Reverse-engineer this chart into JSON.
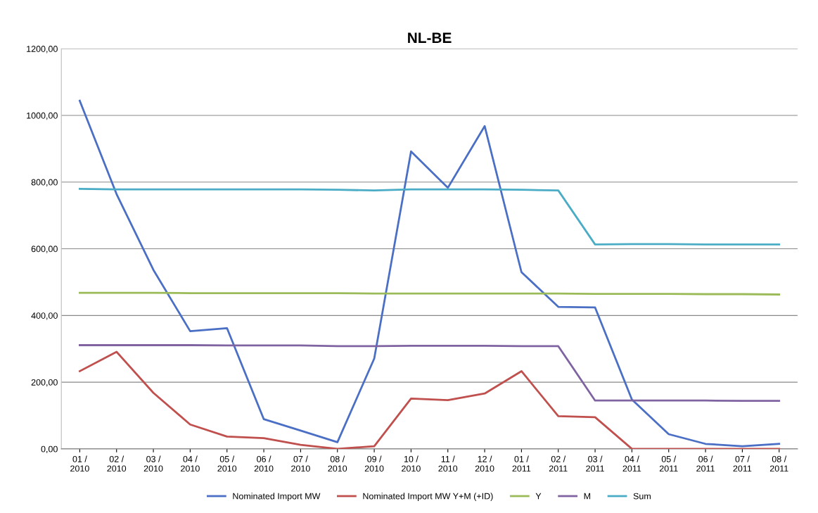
{
  "chart_data": {
    "type": "line",
    "title": "NL-BE",
    "categories": [
      "01 /\n2010",
      "02 /\n2010",
      "03 /\n2010",
      "04 /\n2010",
      "05 /\n2010",
      "06 /\n2010",
      "07 /\n2010",
      "08 /\n2010",
      "09 /\n2010",
      "10 /\n2010",
      "11 /\n2010",
      "12 /\n2010",
      "01 /\n2011",
      "02 /\n2011",
      "03 /\n2011",
      "04 /\n2011",
      "05 /\n2011",
      "06 /\n2011",
      "07 /\n2011",
      "08 /\n2011"
    ],
    "series": [
      {
        "name": "Nominated Import MW",
        "color": "#4a6fc4",
        "values": [
          1044,
          764,
          537,
          353,
          362,
          89,
          55,
          20,
          271,
          892,
          783,
          968,
          530,
          426,
          424,
          148,
          44,
          15,
          8,
          15
        ]
      },
      {
        "name": "Nominated Import MW Y+M (+ID)",
        "color": "#c0504d",
        "values": [
          233,
          291,
          168,
          73,
          37,
          32,
          12,
          0,
          8,
          151,
          146,
          166,
          233,
          98,
          95,
          0,
          0,
          0,
          0,
          0
        ]
      },
      {
        "name": "Y",
        "color": "#9bbb59",
        "values": [
          468,
          468,
          468,
          467,
          467,
          467,
          467,
          467,
          466,
          466,
          466,
          466,
          466,
          466,
          465,
          465,
          465,
          464,
          464,
          463
        ]
      },
      {
        "name": "M",
        "color": "#8064a2",
        "values": [
          311,
          311,
          311,
          311,
          310,
          310,
          310,
          308,
          308,
          309,
          309,
          309,
          308,
          308,
          145,
          145,
          145,
          145,
          144,
          144
        ]
      },
      {
        "name": "Sum",
        "color": "#4bacc6",
        "values": [
          780,
          778,
          778,
          778,
          778,
          778,
          778,
          777,
          775,
          778,
          778,
          778,
          777,
          775,
          613,
          614,
          614,
          613,
          613,
          613
        ]
      }
    ],
    "ylim": [
      0,
      1200
    ],
    "yticks": [
      {
        "value": 0,
        "label": "0,00"
      },
      {
        "value": 200,
        "label": "200,00"
      },
      {
        "value": 400,
        "label": "400,00"
      },
      {
        "value": 600,
        "label": "600,00"
      },
      {
        "value": 800,
        "label": "800,00"
      },
      {
        "value": 1000,
        "label": "1000,00"
      },
      {
        "value": 1200,
        "label": "1200,00"
      }
    ],
    "grid": "y",
    "legend": "bottom",
    "marker": "none",
    "line_style": "solid"
  }
}
